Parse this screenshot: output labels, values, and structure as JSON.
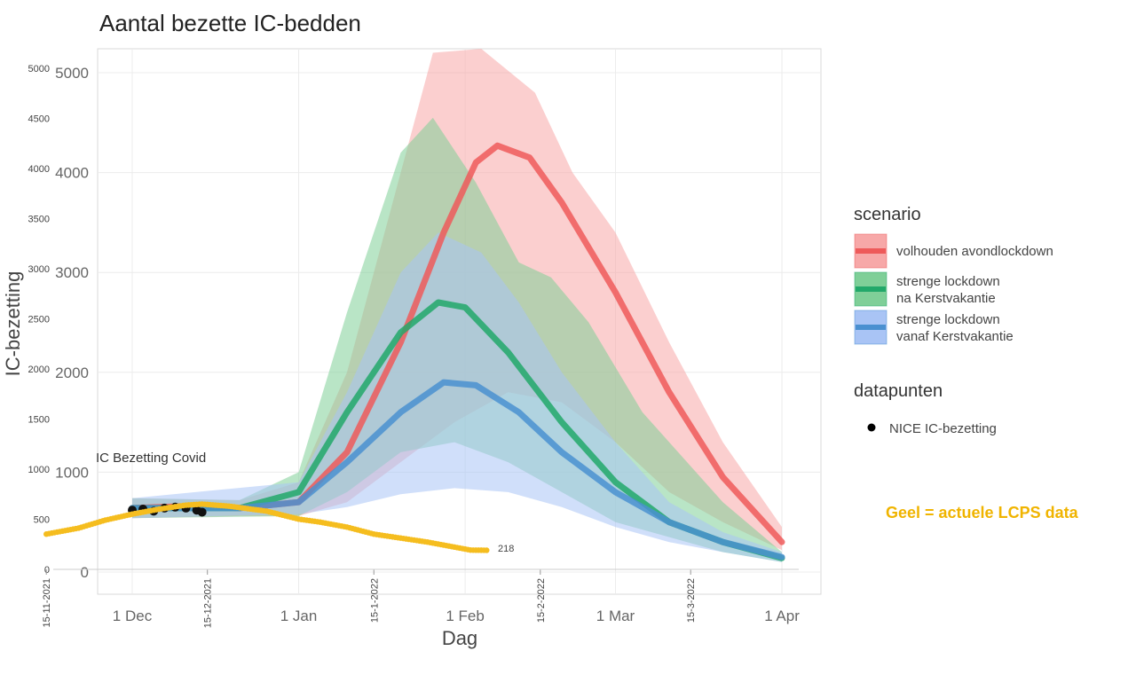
{
  "chart_data": {
    "type": "line",
    "title": "Aantal bezette IC-bedden",
    "xlabel": "Dag",
    "ylabel": "IC-bezetting",
    "x_unit": "days since 1 Dec 2021",
    "x_ticks": [
      {
        "d": 0,
        "label": "1 Dec"
      },
      {
        "d": 31,
        "label": "1 Jan"
      },
      {
        "d": 62,
        "label": "1 Feb"
      },
      {
        "d": 90,
        "label": "1 Mar"
      },
      {
        "d": 121,
        "label": "1 Apr"
      }
    ],
    "x_overlay_ticks": [
      {
        "d": -16,
        "label": "15-11-2021"
      },
      {
        "d": 14,
        "label": "15-12-2021"
      },
      {
        "d": 45,
        "label": "15-1-2022"
      },
      {
        "d": 76,
        "label": "15-2-2022"
      },
      {
        "d": 104,
        "label": "15-3-2022"
      }
    ],
    "y_ticks": [
      "0",
      "1000",
      "2000",
      "3000",
      "4000",
      "5000"
    ],
    "y_overlay_ticks": [
      "0",
      "500",
      "1000",
      "1500",
      "2000",
      "2500",
      "3000",
      "3500",
      "4000",
      "4500",
      "5000"
    ],
    "ylim": [
      0,
      5200
    ],
    "grid": true,
    "legend_position": "right",
    "legend": {
      "scenario_title": "scenario",
      "datapoints_title": "datapunten",
      "nice_label": "NICE IC-bezetting"
    },
    "series": [
      {
        "name": "volhouden avondlockdown",
        "color": "#ee5a5a",
        "band": "#f7a8a8",
        "median": [
          [
            0,
            640
          ],
          [
            10,
            660
          ],
          [
            20,
            640
          ],
          [
            31,
            700
          ],
          [
            40,
            1200
          ],
          [
            50,
            2300
          ],
          [
            58,
            3400
          ],
          [
            64,
            4100
          ],
          [
            68,
            4270
          ],
          [
            74,
            4150
          ],
          [
            80,
            3700
          ],
          [
            90,
            2800
          ],
          [
            100,
            1800
          ],
          [
            110,
            950
          ],
          [
            121,
            300
          ]
        ],
        "upper": [
          [
            0,
            740
          ],
          [
            20,
            720
          ],
          [
            31,
            900
          ],
          [
            40,
            2000
          ],
          [
            50,
            4000
          ],
          [
            56,
            5200
          ],
          [
            65,
            5400
          ],
          [
            75,
            4800
          ],
          [
            82,
            4000
          ],
          [
            90,
            3400
          ],
          [
            100,
            2300
          ],
          [
            110,
            1300
          ],
          [
            121,
            450
          ]
        ],
        "lower": [
          [
            0,
            540
          ],
          [
            20,
            560
          ],
          [
            31,
            560
          ],
          [
            40,
            700
          ],
          [
            50,
            1100
          ],
          [
            60,
            1500
          ],
          [
            70,
            1800
          ],
          [
            80,
            1700
          ],
          [
            90,
            1300
          ],
          [
            100,
            800
          ],
          [
            110,
            500
          ],
          [
            121,
            220
          ]
        ]
      },
      {
        "name": "strenge lockdown\n na Kerstvakantie",
        "name_lines": [
          "strenge lockdown",
          " na Kerstvakantie"
        ],
        "color": "#22a86a",
        "band": "#7fcf98",
        "median": [
          [
            0,
            640
          ],
          [
            20,
            640
          ],
          [
            31,
            800
          ],
          [
            40,
            1600
          ],
          [
            50,
            2400
          ],
          [
            57,
            2700
          ],
          [
            62,
            2650
          ],
          [
            70,
            2200
          ],
          [
            80,
            1500
          ],
          [
            90,
            900
          ],
          [
            100,
            500
          ],
          [
            110,
            300
          ],
          [
            121,
            140
          ]
        ],
        "upper": [
          [
            0,
            740
          ],
          [
            20,
            720
          ],
          [
            31,
            1000
          ],
          [
            40,
            2600
          ],
          [
            50,
            4200
          ],
          [
            56,
            4550
          ],
          [
            64,
            3900
          ],
          [
            72,
            3100
          ],
          [
            78,
            2950
          ],
          [
            85,
            2500
          ],
          [
            95,
            1600
          ],
          [
            110,
            700
          ],
          [
            121,
            200
          ]
        ],
        "lower": [
          [
            0,
            540
          ],
          [
            31,
            560
          ],
          [
            40,
            800
          ],
          [
            50,
            1200
          ],
          [
            60,
            1300
          ],
          [
            70,
            1100
          ],
          [
            80,
            800
          ],
          [
            90,
            500
          ],
          [
            110,
            200
          ],
          [
            121,
            100
          ]
        ]
      },
      {
        "name": "strenge lockdown\n vanaf Kerstvakantie",
        "name_lines": [
          "strenge lockdown",
          " vanaf Kerstvakantie"
        ],
        "color": "#4a90d0",
        "band": "#a9c4f5",
        "median": [
          [
            0,
            640
          ],
          [
            20,
            640
          ],
          [
            31,
            700
          ],
          [
            40,
            1100
          ],
          [
            50,
            1600
          ],
          [
            58,
            1900
          ],
          [
            64,
            1870
          ],
          [
            72,
            1600
          ],
          [
            80,
            1200
          ],
          [
            90,
            800
          ],
          [
            100,
            500
          ],
          [
            110,
            300
          ],
          [
            121,
            150
          ]
        ],
        "upper": [
          [
            0,
            740
          ],
          [
            31,
            900
          ],
          [
            40,
            1800
          ],
          [
            50,
            3000
          ],
          [
            57,
            3400
          ],
          [
            65,
            3200
          ],
          [
            72,
            2700
          ],
          [
            80,
            2000
          ],
          [
            90,
            1300
          ],
          [
            100,
            700
          ],
          [
            110,
            400
          ],
          [
            121,
            200
          ]
        ],
        "lower": [
          [
            0,
            540
          ],
          [
            31,
            580
          ],
          [
            40,
            650
          ],
          [
            50,
            780
          ],
          [
            60,
            840
          ],
          [
            70,
            800
          ],
          [
            80,
            650
          ],
          [
            90,
            450
          ],
          [
            100,
            300
          ],
          [
            110,
            200
          ],
          [
            121,
            100
          ]
        ]
      }
    ],
    "nice_points": [
      [
        0,
        620
      ],
      [
        2,
        630
      ],
      [
        4,
        610
      ],
      [
        6,
        640
      ],
      [
        8,
        650
      ],
      [
        10,
        640
      ],
      [
        12,
        620
      ],
      [
        13,
        600
      ]
    ],
    "lcps": {
      "color": "#f5bd1f",
      "points": [
        [
          -16,
          380
        ],
        [
          -10,
          440
        ],
        [
          -5,
          520
        ],
        [
          0,
          580
        ],
        [
          5,
          630
        ],
        [
          10,
          670
        ],
        [
          13,
          680
        ],
        [
          18,
          660
        ],
        [
          25,
          610
        ],
        [
          31,
          530
        ],
        [
          35,
          500
        ],
        [
          40,
          450
        ],
        [
          45,
          380
        ],
        [
          50,
          340
        ],
        [
          55,
          300
        ],
        [
          60,
          250
        ],
        [
          63,
          220
        ],
        [
          66,
          218
        ]
      ],
      "last_label": "218"
    },
    "annotations": {
      "ic_label": "IC Bezetting Covid",
      "note": "Geel = actuele LCPS data"
    }
  }
}
